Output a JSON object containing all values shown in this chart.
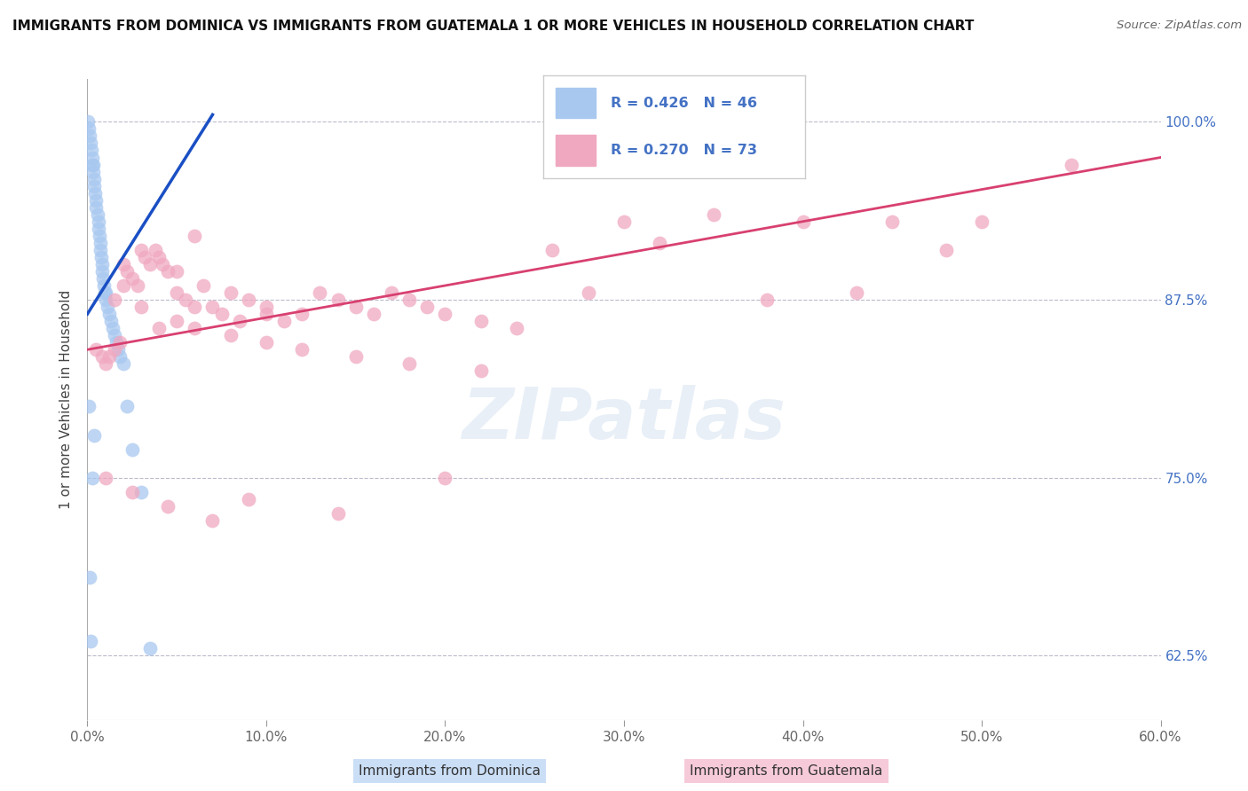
{
  "title": "IMMIGRANTS FROM DOMINICA VS IMMIGRANTS FROM GUATEMALA 1 OR MORE VEHICLES IN HOUSEHOLD CORRELATION CHART",
  "source": "Source: ZipAtlas.com",
  "xlabel_dominica": "Immigrants from Dominica",
  "xlabel_guatemala": "Immigrants from Guatemala",
  "ylabel": "1 or more Vehicles in Household",
  "xlim": [
    0.0,
    60.0
  ],
  "ylim": [
    58.0,
    103.0
  ],
  "yticks": [
    62.5,
    75.0,
    87.5,
    100.0
  ],
  "xticks": [
    0.0,
    10.0,
    20.0,
    30.0,
    40.0,
    50.0,
    60.0
  ],
  "color_dominica": "#A8C8F0",
  "color_guatemala": "#F0A8C0",
  "line_color_dominica": "#1A4FC4",
  "line_color_guatemala": "#D84070",
  "R_dominica": 0.426,
  "N_dominica": 46,
  "R_guatemala": 0.27,
  "N_guatemala": 73,
  "dominica_x": [
    0.05,
    0.1,
    0.15,
    0.2,
    0.25,
    0.3,
    0.3,
    0.35,
    0.35,
    0.4,
    0.4,
    0.45,
    0.5,
    0.5,
    0.55,
    0.6,
    0.6,
    0.65,
    0.7,
    0.7,
    0.75,
    0.8,
    0.8,
    0.85,
    0.9,
    0.95,
    1.0,
    1.0,
    1.1,
    1.2,
    1.3,
    1.4,
    1.5,
    1.6,
    1.7,
    1.8,
    2.0,
    2.2,
    2.5,
    3.0,
    3.5,
    0.2,
    0.3,
    0.1,
    0.15,
    0.4
  ],
  "dominica_y": [
    100.0,
    99.5,
    99.0,
    98.5,
    98.0,
    97.5,
    97.0,
    97.0,
    96.5,
    96.0,
    95.5,
    95.0,
    94.5,
    94.0,
    93.5,
    93.0,
    92.5,
    92.0,
    91.5,
    91.0,
    90.5,
    90.0,
    89.5,
    89.0,
    88.5,
    88.0,
    88.0,
    87.5,
    87.0,
    86.5,
    86.0,
    85.5,
    85.0,
    84.5,
    84.0,
    83.5,
    83.0,
    80.0,
    77.0,
    74.0,
    63.0,
    63.5,
    75.0,
    80.0,
    68.0,
    78.0
  ],
  "guatemala_x": [
    0.5,
    0.8,
    1.0,
    1.2,
    1.5,
    1.8,
    2.0,
    2.2,
    2.5,
    2.8,
    3.0,
    3.2,
    3.5,
    3.8,
    4.0,
    4.2,
    4.5,
    5.0,
    5.0,
    5.5,
    6.0,
    6.0,
    6.5,
    7.0,
    7.5,
    8.0,
    8.5,
    9.0,
    10.0,
    10.0,
    11.0,
    12.0,
    13.0,
    14.0,
    15.0,
    16.0,
    17.0,
    18.0,
    19.0,
    20.0,
    22.0,
    24.0,
    26.0,
    28.0,
    30.0,
    32.0,
    35.0,
    38.0,
    40.0,
    43.0,
    45.0,
    48.0,
    50.0,
    55.0,
    1.5,
    2.0,
    3.0,
    4.0,
    5.0,
    6.0,
    8.0,
    10.0,
    12.0,
    15.0,
    18.0,
    22.0,
    1.0,
    2.5,
    4.5,
    7.0,
    9.0,
    14.0,
    20.0
  ],
  "guatemala_y": [
    84.0,
    83.5,
    83.0,
    83.5,
    84.0,
    84.5,
    90.0,
    89.5,
    89.0,
    88.5,
    91.0,
    90.5,
    90.0,
    91.0,
    90.5,
    90.0,
    89.5,
    89.5,
    88.0,
    87.5,
    92.0,
    87.0,
    88.5,
    87.0,
    86.5,
    88.0,
    86.0,
    87.5,
    87.0,
    86.5,
    86.0,
    86.5,
    88.0,
    87.5,
    87.0,
    86.5,
    88.0,
    87.5,
    87.0,
    86.5,
    86.0,
    85.5,
    91.0,
    88.0,
    93.0,
    91.5,
    93.5,
    87.5,
    93.0,
    88.0,
    93.0,
    91.0,
    93.0,
    97.0,
    87.5,
    88.5,
    87.0,
    85.5,
    86.0,
    85.5,
    85.0,
    84.5,
    84.0,
    83.5,
    83.0,
    82.5,
    75.0,
    74.0,
    73.0,
    72.0,
    73.5,
    72.5,
    75.0
  ],
  "dom_trend_x0": 0.0,
  "dom_trend_y0": 86.5,
  "dom_trend_x1": 7.0,
  "dom_trend_y1": 100.5,
  "gua_trend_x0": 0.0,
  "gua_trend_y0": 84.0,
  "gua_trend_x1": 60.0,
  "gua_trend_y1": 97.5
}
